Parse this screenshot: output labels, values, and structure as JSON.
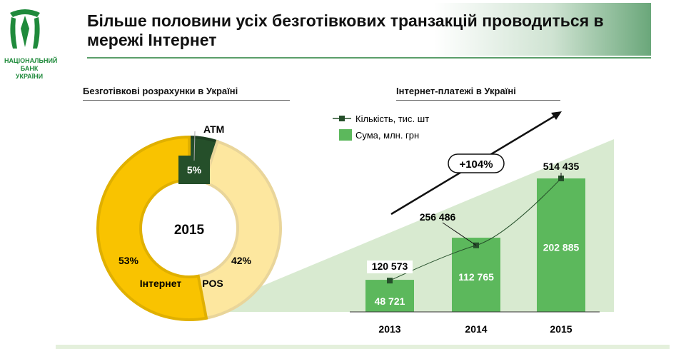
{
  "header": {
    "title": "Більше половини усіх безготівкових транзакцій проводиться в мережі Інтернет",
    "bank_name": [
      "НАЦІОНАЛЬНИЙ",
      "БАНК",
      "УКРАЇНИ"
    ]
  },
  "left": {
    "section_title": "Безготівкові розрахунки в Україні"
  },
  "right": {
    "section_title": "Інтернет-платежі в Україні"
  },
  "chart_data": [
    {
      "type": "pie",
      "title": "Безготівкові розрахунки в Україні",
      "center_label": "2015",
      "slices": [
        {
          "name": "ATM",
          "value": 5,
          "label": "5%",
          "color": "#254f2a"
        },
        {
          "name": "POS",
          "value": 42,
          "label": "42%",
          "color": "#fde79f"
        },
        {
          "name": "Інтернет",
          "value": 53,
          "label": "53%",
          "color": "#f9c300"
        }
      ]
    },
    {
      "type": "bar",
      "title": "Інтернет-платежі в Україні",
      "categories": [
        "2013",
        "2014",
        "2015"
      ],
      "series": [
        {
          "name": "Сума, млн. грн",
          "kind": "bar",
          "values": [
            48721,
            112765,
            202885
          ],
          "labels": [
            "48 721",
            "112 765",
            "202 885"
          ],
          "color": "#5cb85c"
        },
        {
          "name": "Кількість, тис. шт",
          "kind": "line",
          "values": [
            120573,
            256486,
            514435
          ],
          "labels": [
            "120 573",
            "256 486",
            "514 435"
          ],
          "color": "#254f2a"
        }
      ],
      "annotation": "+104%"
    }
  ]
}
